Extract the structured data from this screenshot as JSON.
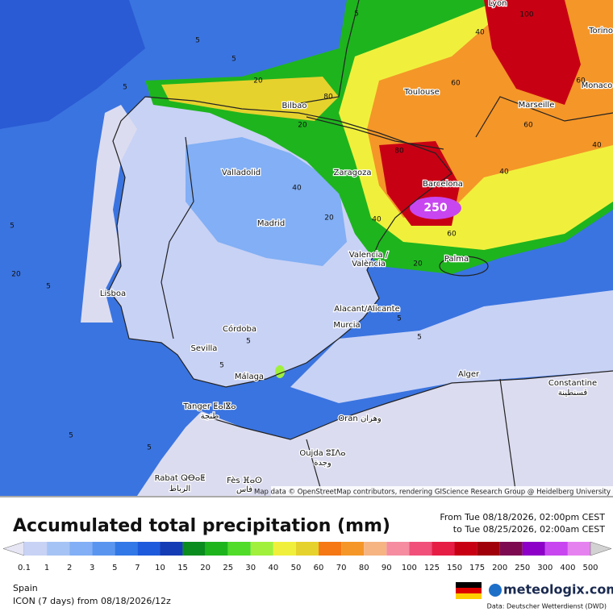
{
  "header": {
    "title": "Accumulated total precipitation (mm)",
    "period_from": "From Tue 08/18/2026, 02:00pm CEST",
    "period_to": "to Tue 08/25/2026, 02:00am CEST"
  },
  "scale": {
    "values": [
      0.1,
      1,
      2,
      3,
      5,
      7,
      10,
      15,
      20,
      25,
      30,
      40,
      50,
      60,
      70,
      80,
      90,
      100,
      125,
      150,
      175,
      200,
      250,
      300,
      400,
      500
    ],
    "colors": [
      "#e6e6f5",
      "#c8d2f5",
      "#a5c3f5",
      "#82aff5",
      "#5a96f0",
      "#3278e6",
      "#1e5adc",
      "#143cb4",
      "#0a8c1e",
      "#1eb41e",
      "#50dc28",
      "#a0f03c",
      "#f0f03c",
      "#e6d22d",
      "#f57814",
      "#f59628",
      "#f5b482",
      "#f58ca0",
      "#f0507a",
      "#e61e46",
      "#c80014",
      "#a0000a",
      "#7d0a50",
      "#8c00c8",
      "#c846f0",
      "#e682f0",
      "#f0b4f5",
      "#f5dcf5",
      "#d2d2d2"
    ]
  },
  "map": {
    "cities": [
      "Lyon",
      "Torino",
      "Monaco",
      "Toulouse",
      "Marseille",
      "Bilbao",
      "Valladolid",
      "Zaragoza",
      "Barcelona",
      "Madrid",
      "Valencia /",
      "València",
      "Palma",
      "Lisboa",
      "Alacant/Alicante",
      "Murcia",
      "Córdoba",
      "Sevilla",
      "Málaga",
      "Alger",
      "Constantine",
      "قسنطينة",
      "Tanger ⵟⴰⵏⴵⴰ",
      "طنجة",
      "Oran وهران",
      "Oujda ⵓⵊⴷⴰ",
      "وجدة",
      "Rabat ⵕⴱⴰⵟ",
      "الرباط",
      "Fès ⴼⴰⵙ",
      "فاس"
    ],
    "contour_labels": [
      5,
      5,
      5,
      5,
      5,
      5,
      5,
      5,
      20,
      20,
      20,
      20,
      40,
      40,
      40,
      40,
      60,
      60,
      60,
      80,
      80,
      100,
      250,
      20,
      40,
      60,
      5,
      5,
      5,
      5
    ],
    "attribution": "Map data © OpenStreetMap contributors, rendering GIScience Research Group @ Heidelberg University"
  },
  "footer": {
    "region": "Spain",
    "model": "ICON (7 days)  from  08/18/2026/12z",
    "brand": "meteologix.com",
    "source": "Data: Deutscher Wetterdienst (DWD)"
  }
}
